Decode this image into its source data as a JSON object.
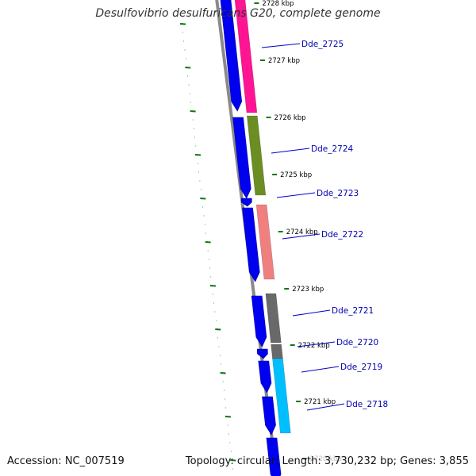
{
  "title": "Desulfovibrio desulfuricans G20, complete genome",
  "accession": "Accession: NC_007519",
  "summary": "Topology: circular; Length: 3,730,232 bp; Genes: 3,855",
  "colors": {
    "backbone": "#8a8a8a",
    "forward_strand": "#0000f0",
    "tick": "#000000",
    "gc_marks": "#117711",
    "label_line": "#0000cc",
    "label_text": "#0000b0"
  },
  "kbp_ticks": [
    "2728 kbp",
    "2727 kbp",
    "2726 kbp",
    "2725 kbp",
    "2724 kbp",
    "2723 kbp",
    "2722 kbp",
    "2721 kbp",
    "2720 kbp"
  ],
  "genes": [
    {
      "label": "Dde_2725",
      "color": "#ff1493"
    },
    {
      "label": "Dde_2724",
      "color": "#6b8e23"
    },
    {
      "label": "Dde_2723",
      "color": "#ffffff"
    },
    {
      "label": "Dde_2722",
      "color": "#f08080"
    },
    {
      "label": "Dde_2721",
      "color": "#696969"
    },
    {
      "label": "Dde_2720",
      "color": "#696969"
    },
    {
      "label": "Dde_2719",
      "color": "#00bfff"
    },
    {
      "label": "Dde_2718",
      "color": "#00bfff"
    }
  ]
}
